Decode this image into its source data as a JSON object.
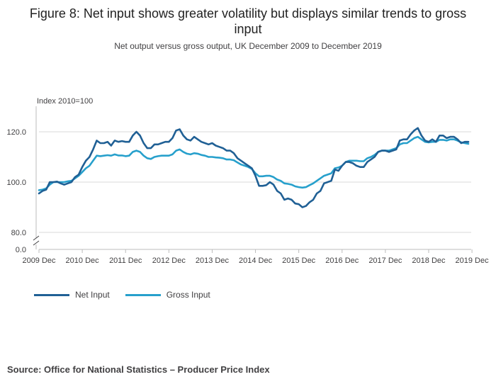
{
  "title": "Figure 8: Net input shows greater volatility but displays similar trends to gross input",
  "subtitle": "Net output versus gross output, UK December 2009 to December 2019",
  "source": "Source: Office for National Statistics – Producer Price Index",
  "chart_data": {
    "type": "line",
    "ylabel": "Index 2010=100",
    "yticks": [
      "0.0",
      "80.0",
      "100.0",
      "120.0"
    ],
    "ylim": [
      80,
      130
    ],
    "axis_break": true,
    "x_tick_labels": [
      "2009 Dec",
      "2010 Dec",
      "2011 Dec",
      "2012 Dec",
      "2013 Dec",
      "2014 Dec",
      "2015 Dec",
      "2016 Dec",
      "2017 Dec",
      "2018 Dec",
      "2019 Dec"
    ],
    "grid": "horizontal",
    "legend_position": "bottom-left",
    "x_start": "2009 Dec",
    "x_step": "1 month",
    "series": [
      {
        "name": "Net Input",
        "color": "#206095",
        "values": [
          95.5,
          96.5,
          97.0,
          100.0,
          100.0,
          100.2,
          99.5,
          99.0,
          99.5,
          100.0,
          102.0,
          103.0,
          106.0,
          108.5,
          110.0,
          113.0,
          116.5,
          115.5,
          115.5,
          116.0,
          114.5,
          116.5,
          116.0,
          116.3,
          116.0,
          116.0,
          118.5,
          120.0,
          118.5,
          115.5,
          113.5,
          113.5,
          115.0,
          115.0,
          115.5,
          116.0,
          116.0,
          117.5,
          120.5,
          121.0,
          118.5,
          117.0,
          116.5,
          118.0,
          117.0,
          116.0,
          115.5,
          115.0,
          115.5,
          114.5,
          114.0,
          113.5,
          112.5,
          112.5,
          111.5,
          109.5,
          108.5,
          107.5,
          106.5,
          105.5,
          102.5,
          98.5,
          98.5,
          98.8,
          100.0,
          99.0,
          96.5,
          95.5,
          93.0,
          93.5,
          93.0,
          91.5,
          91.2,
          90.0,
          90.5,
          92.0,
          93.0,
          95.5,
          96.5,
          99.5,
          100.0,
          100.5,
          105.0,
          104.5,
          106.5,
          108.0,
          108.0,
          107.5,
          106.5,
          106.0,
          106.0,
          108.0,
          109.0,
          110.0,
          112.0,
          112.5,
          112.5,
          112.0,
          112.5,
          113.0,
          116.5,
          117.0,
          117.0,
          119.0,
          120.5,
          121.5,
          118.5,
          116.5,
          116.0,
          117.0,
          116.0,
          118.5,
          118.5,
          117.5,
          118.0,
          118.0,
          117.0,
          115.5,
          116.0,
          116.0
        ]
      },
      {
        "name": "Gross Input",
        "color": "#27a0cc",
        "values": [
          96.8,
          97.0,
          97.5,
          99.0,
          100.0,
          100.0,
          100.0,
          100.0,
          100.3,
          100.5,
          101.5,
          102.5,
          104.0,
          105.5,
          106.5,
          108.5,
          110.5,
          110.3,
          110.5,
          110.7,
          110.5,
          111.0,
          110.6,
          110.6,
          110.3,
          110.5,
          112.0,
          112.5,
          112.0,
          110.5,
          109.5,
          109.2,
          110.0,
          110.3,
          110.5,
          110.5,
          110.5,
          111.0,
          112.5,
          113.0,
          112.0,
          111.3,
          111.0,
          111.5,
          111.3,
          110.8,
          110.5,
          110.0,
          110.0,
          109.8,
          109.7,
          109.5,
          109.0,
          109.0,
          108.7,
          107.8,
          107.0,
          106.5,
          106.0,
          105.2,
          103.5,
          102.3,
          102.3,
          102.5,
          102.5,
          102.0,
          101.0,
          100.5,
          99.5,
          99.3,
          99.0,
          98.3,
          98.0,
          97.8,
          98.0,
          98.8,
          99.5,
          100.5,
          101.5,
          102.5,
          103.0,
          103.5,
          105.5,
          105.8,
          106.5,
          108.0,
          108.5,
          108.5,
          108.5,
          108.3,
          108.3,
          109.5,
          110.0,
          110.8,
          112.0,
          112.5,
          112.5,
          112.5,
          113.0,
          113.5,
          115.0,
          115.5,
          115.5,
          116.5,
          117.5,
          118.0,
          117.0,
          116.0,
          115.8,
          116.0,
          116.0,
          116.8,
          116.8,
          116.5,
          117.0,
          117.0,
          116.5,
          115.8,
          115.5,
          115.2
        ]
      }
    ]
  }
}
